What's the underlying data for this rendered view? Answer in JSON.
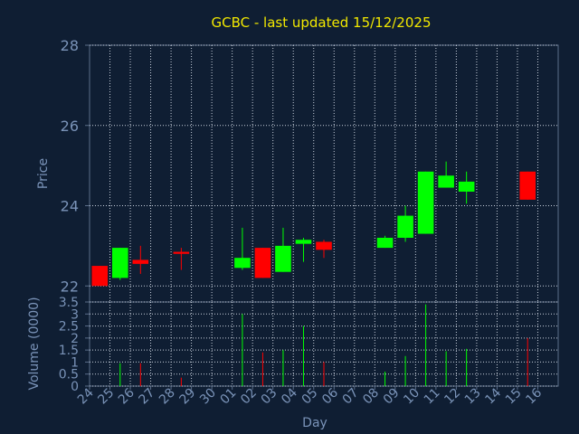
{
  "chart_data": {
    "type": "candlestick",
    "title": "GCBC - last updated 15/12/2025",
    "price_ylabel": "Price",
    "volume_ylabel": "Volume (0000)",
    "xlabel": "Day",
    "price_ylim": [
      21.6,
      28
    ],
    "price_yticks": [
      "28",
      "26",
      "24",
      "22"
    ],
    "volume_ylim": [
      0,
      3.5
    ],
    "volume_yticks": [
      "3.5",
      "3",
      "2.5",
      "2",
      "1.5",
      "1",
      "0.5",
      "0"
    ],
    "grid": true,
    "day_labels": [
      "24",
      "25",
      "26",
      "27",
      "28",
      "29",
      "30",
      "01",
      "02",
      "03",
      "04",
      "05",
      "06",
      "07",
      "08",
      "09",
      "10",
      "11",
      "12",
      "13",
      "14",
      "15",
      "16"
    ],
    "colors": {
      "up": "#00ff00",
      "down": "#ff0000",
      "background": "#0f1e33",
      "title": "#f2e800",
      "grid": "#c8d0dc",
      "axis_text": "#7a93b8"
    },
    "candles": [
      {
        "day": "24",
        "open": 22.5,
        "high": 22.5,
        "low": 22.0,
        "close": 22.0,
        "volume": 0
      },
      {
        "day": "25",
        "open": 22.2,
        "high": 22.95,
        "low": 22.15,
        "close": 22.95,
        "volume": 0.95
      },
      {
        "day": "26",
        "open": 22.65,
        "high": 23.0,
        "low": 22.3,
        "close": 22.55,
        "volume": 0.95
      },
      {
        "day": "28",
        "open": 22.85,
        "high": 22.95,
        "low": 22.4,
        "close": 22.8,
        "volume": 0.35
      },
      {
        "day": "01",
        "open": 22.45,
        "high": 23.45,
        "low": 22.4,
        "close": 22.7,
        "volume": 3.0
      },
      {
        "day": "02",
        "open": 22.95,
        "high": 22.95,
        "low": 22.2,
        "close": 22.2,
        "volume": 1.4
      },
      {
        "day": "03",
        "open": 22.35,
        "high": 23.45,
        "low": 22.35,
        "close": 23.0,
        "volume": 1.5
      },
      {
        "day": "04",
        "open": 23.05,
        "high": 23.2,
        "low": 22.6,
        "close": 23.15,
        "volume": 2.5
      },
      {
        "day": "05",
        "open": 23.1,
        "high": 23.15,
        "low": 22.7,
        "close": 22.9,
        "volume": 1.0
      },
      {
        "day": "08",
        "open": 22.95,
        "high": 23.25,
        "low": 22.95,
        "close": 23.2,
        "volume": 0.6
      },
      {
        "day": "09",
        "open": 23.2,
        "high": 24.0,
        "low": 23.1,
        "close": 23.75,
        "volume": 1.25
      },
      {
        "day": "10",
        "open": 23.3,
        "high": 24.85,
        "low": 23.3,
        "close": 24.85,
        "volume": 3.4
      },
      {
        "day": "11",
        "open": 24.45,
        "high": 25.1,
        "low": 24.45,
        "close": 24.75,
        "volume": 1.45
      },
      {
        "day": "12",
        "open": 24.35,
        "high": 24.85,
        "low": 24.05,
        "close": 24.6,
        "volume": 1.55
      },
      {
        "day": "15",
        "open": 24.85,
        "high": 24.85,
        "low": 24.15,
        "close": 24.15,
        "volume": 2.0
      }
    ]
  }
}
